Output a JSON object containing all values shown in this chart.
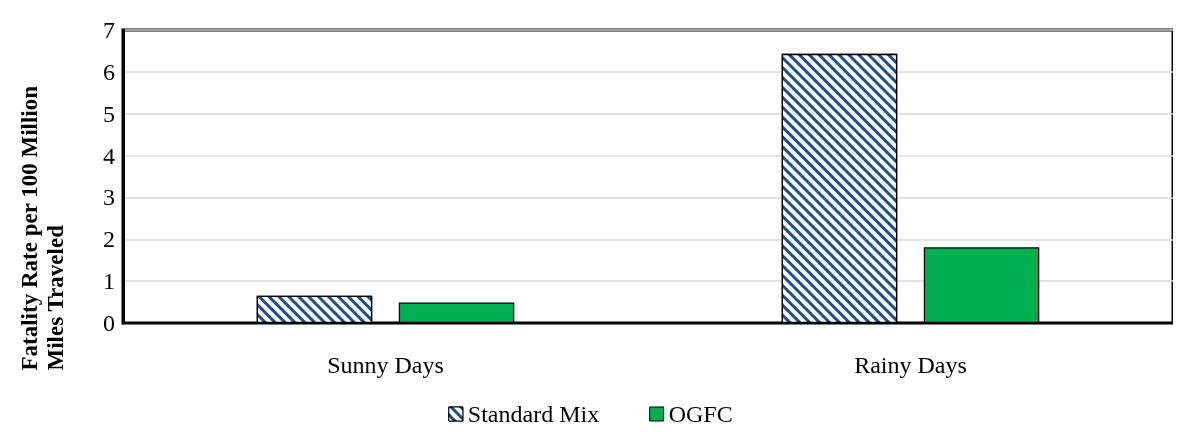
{
  "chart_data": {
    "type": "bar",
    "ylabel": "Fatality Rate per 100 Million Miles Traveled",
    "categories": [
      "Sunny Days",
      "Rainy Days"
    ],
    "series": [
      {
        "name": "Standard Mix",
        "color": "#1f4e8c",
        "values": [
          0.65,
          6.43
        ]
      },
      {
        "name": "OGFC",
        "color": "#00b050",
        "values": [
          0.49,
          1.81
        ]
      }
    ],
    "ylim": [
      0,
      7
    ],
    "yticks": [
      0,
      1,
      2,
      3,
      4,
      5,
      6,
      7
    ],
    "grid": "y",
    "legend": "bottom"
  }
}
